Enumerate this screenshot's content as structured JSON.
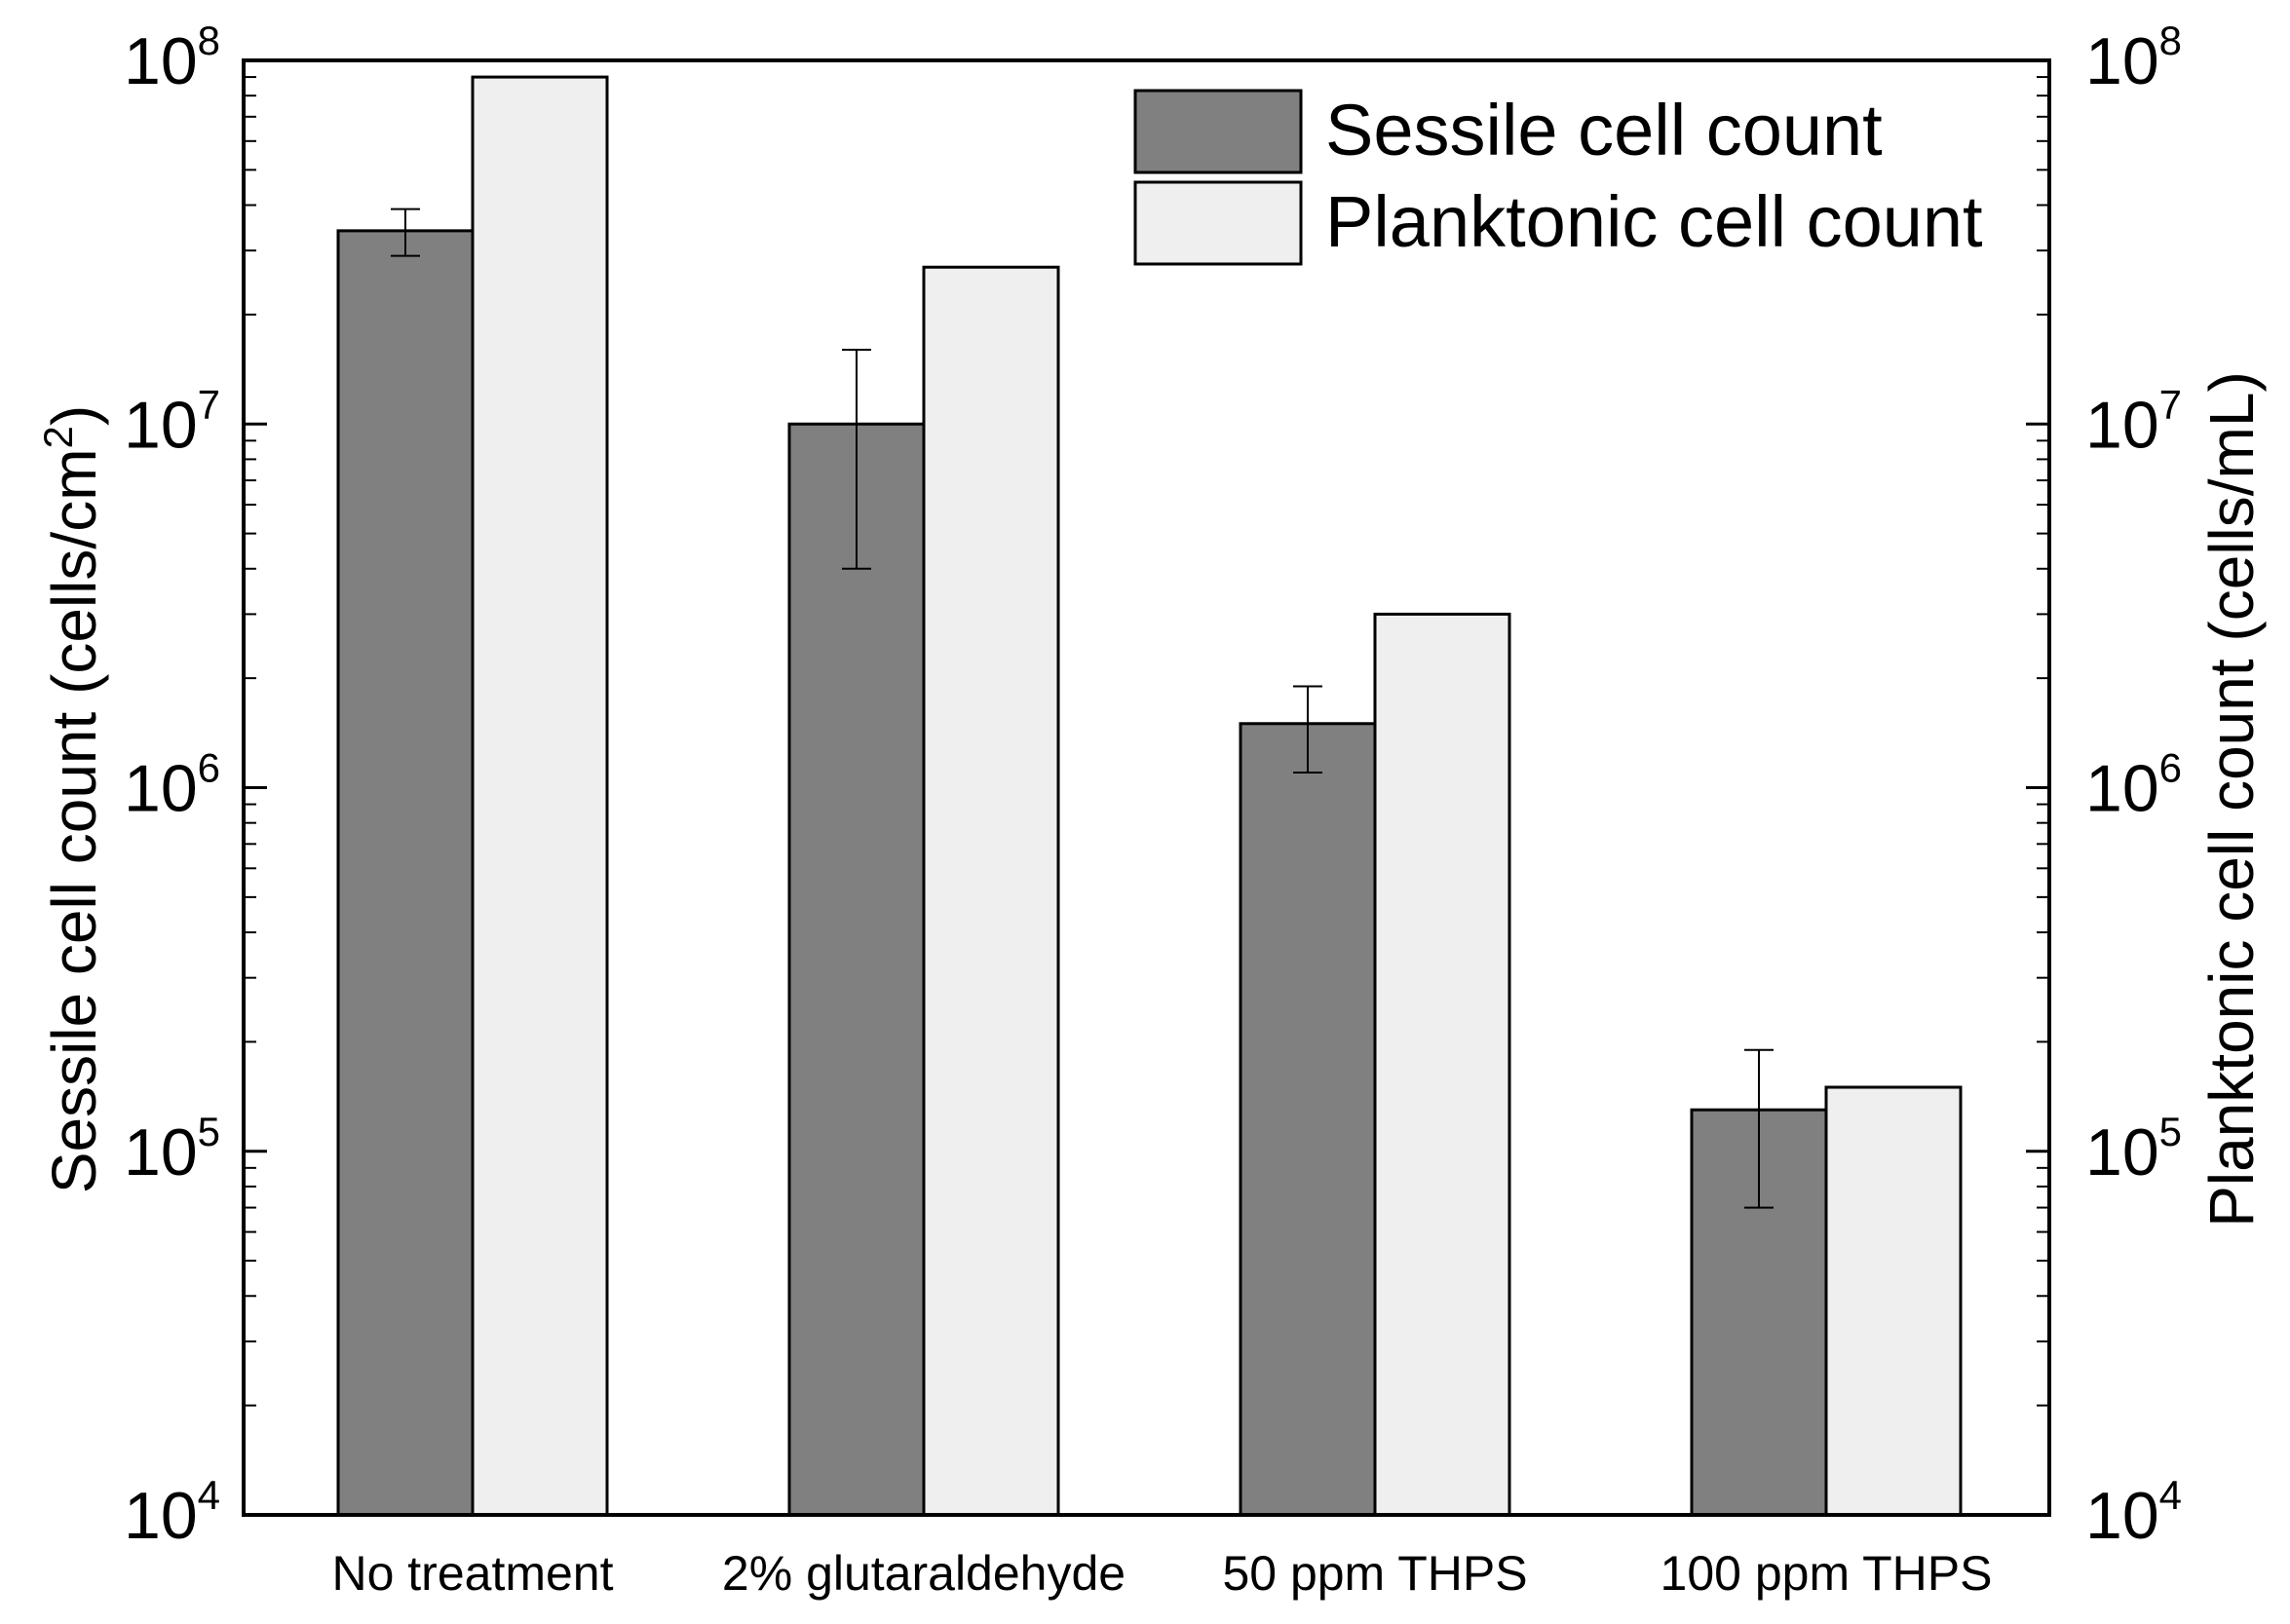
{
  "chart_data": {
    "type": "bar",
    "scale": "log",
    "categories": [
      "No treatment",
      "2% glutaraldehyde",
      "50 ppm THPS",
      "100 ppm THPS"
    ],
    "series": [
      {
        "name": "Sessile cell count",
        "axis": "left",
        "color": "#808080",
        "values": [
          34000000,
          10000000,
          1500000,
          130000
        ],
        "error_low": [
          29000000,
          4000000,
          1100000,
          70000
        ],
        "error_high": [
          39000000,
          16000000,
          1900000,
          190000
        ]
      },
      {
        "name": "Planktonic cell count",
        "axis": "right",
        "color": "#efefef",
        "values": [
          90000000,
          27000000,
          3000000,
          150000
        ]
      }
    ],
    "y_left": {
      "label_prefix": "Sessile cell count (cells/cm",
      "label_sup": "2",
      "label_suffix": ")",
      "ylim": [
        10000,
        100000000
      ],
      "ticks": [
        {
          "value": 10000,
          "base": "10",
          "exp": "4"
        },
        {
          "value": 100000,
          "base": "10",
          "exp": "5"
        },
        {
          "value": 1000000,
          "base": "10",
          "exp": "6"
        },
        {
          "value": 10000000,
          "base": "10",
          "exp": "7"
        },
        {
          "value": 100000000,
          "base": "10",
          "exp": "8"
        }
      ]
    },
    "y_right": {
      "label": "Planktonic cell count (cells/mL)",
      "ylim": [
        10000,
        100000000
      ],
      "ticks": [
        {
          "value": 10000,
          "base": "10",
          "exp": "4"
        },
        {
          "value": 100000,
          "base": "10",
          "exp": "5"
        },
        {
          "value": 1000000,
          "base": "10",
          "exp": "6"
        },
        {
          "value": 10000000,
          "base": "10",
          "exp": "7"
        },
        {
          "value": 100000000,
          "base": "10",
          "exp": "8"
        }
      ]
    },
    "legend": {
      "position": "top-right",
      "entries": [
        "Sessile cell count",
        "Planktonic cell count"
      ]
    },
    "grid": false
  }
}
